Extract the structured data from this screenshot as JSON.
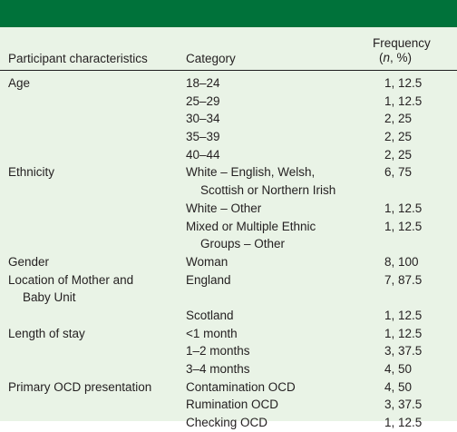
{
  "table": {
    "headers": {
      "characteristic": "Participant characteristics",
      "category": "Category",
      "frequency_line1": "Frequency",
      "frequency_n": "n",
      "frequency_rest": ", %)",
      "frequency_open": "("
    },
    "rows": [
      {
        "characteristic": [
          "Age"
        ],
        "category": [
          "18–24"
        ],
        "frequency": "1, 12.5"
      },
      {
        "characteristic": [],
        "category": [
          "25–29"
        ],
        "frequency": "1, 12.5"
      },
      {
        "characteristic": [],
        "category": [
          "30–34"
        ],
        "frequency": "2, 25"
      },
      {
        "characteristic": [],
        "category": [
          "35–39"
        ],
        "frequency": "2, 25"
      },
      {
        "characteristic": [],
        "category": [
          "40–44"
        ],
        "frequency": "2, 25"
      },
      {
        "characteristic": [
          "Ethnicity"
        ],
        "category": [
          "White – English, Welsh,",
          "Scottish or Northern Irish"
        ],
        "frequency": "6, 75"
      },
      {
        "characteristic": [],
        "category": [
          "White – Other"
        ],
        "frequency": "1, 12.5"
      },
      {
        "characteristic": [],
        "category": [
          "Mixed or Multiple Ethnic",
          "Groups – Other"
        ],
        "frequency": "1, 12.5"
      },
      {
        "characteristic": [
          "Gender"
        ],
        "category": [
          "Woman"
        ],
        "frequency": "8, 100"
      },
      {
        "characteristic": [
          "Location of Mother and",
          "Baby Unit"
        ],
        "category": [
          "England"
        ],
        "frequency": "7, 87.5"
      },
      {
        "characteristic": [],
        "category": [
          "Scotland"
        ],
        "frequency": "1, 12.5"
      },
      {
        "characteristic": [
          "Length of stay"
        ],
        "category": [
          "<1 month"
        ],
        "frequency": "1, 12.5"
      },
      {
        "characteristic": [],
        "category": [
          "1–2 months"
        ],
        "frequency": "3, 37.5"
      },
      {
        "characteristic": [],
        "category": [
          "3–4 months"
        ],
        "frequency": "4, 50"
      },
      {
        "characteristic": [
          "Primary OCD presentation"
        ],
        "category": [
          "Contamination OCD"
        ],
        "frequency": "4, 50"
      },
      {
        "characteristic": [],
        "category": [
          "Rumination OCD"
        ],
        "frequency": "3, 37.5"
      },
      {
        "characteristic": [],
        "category": [
          "Checking OCD"
        ],
        "frequency": "1, 12.5"
      }
    ],
    "colors": {
      "top_bar": "#00723a",
      "background": "#e9f3e6",
      "text": "#231f20"
    }
  }
}
